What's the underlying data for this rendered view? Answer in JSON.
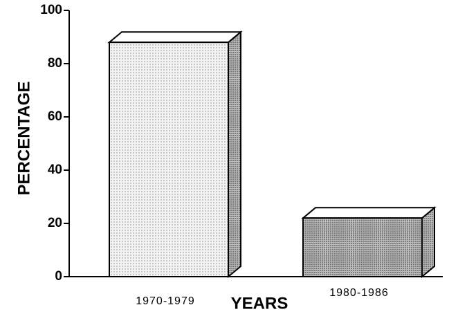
{
  "chart_data": {
    "type": "bar3d",
    "xlabel": "YEARS",
    "ylabel": "PERCENTAGE",
    "categories": [
      "1970-1979",
      "1980-1986"
    ],
    "values": [
      88,
      22
    ],
    "color": "#e4e4e4",
    "ylim": [
      0,
      100
    ],
    "yticks": [
      0,
      20,
      40,
      60,
      80,
      100
    ]
  }
}
